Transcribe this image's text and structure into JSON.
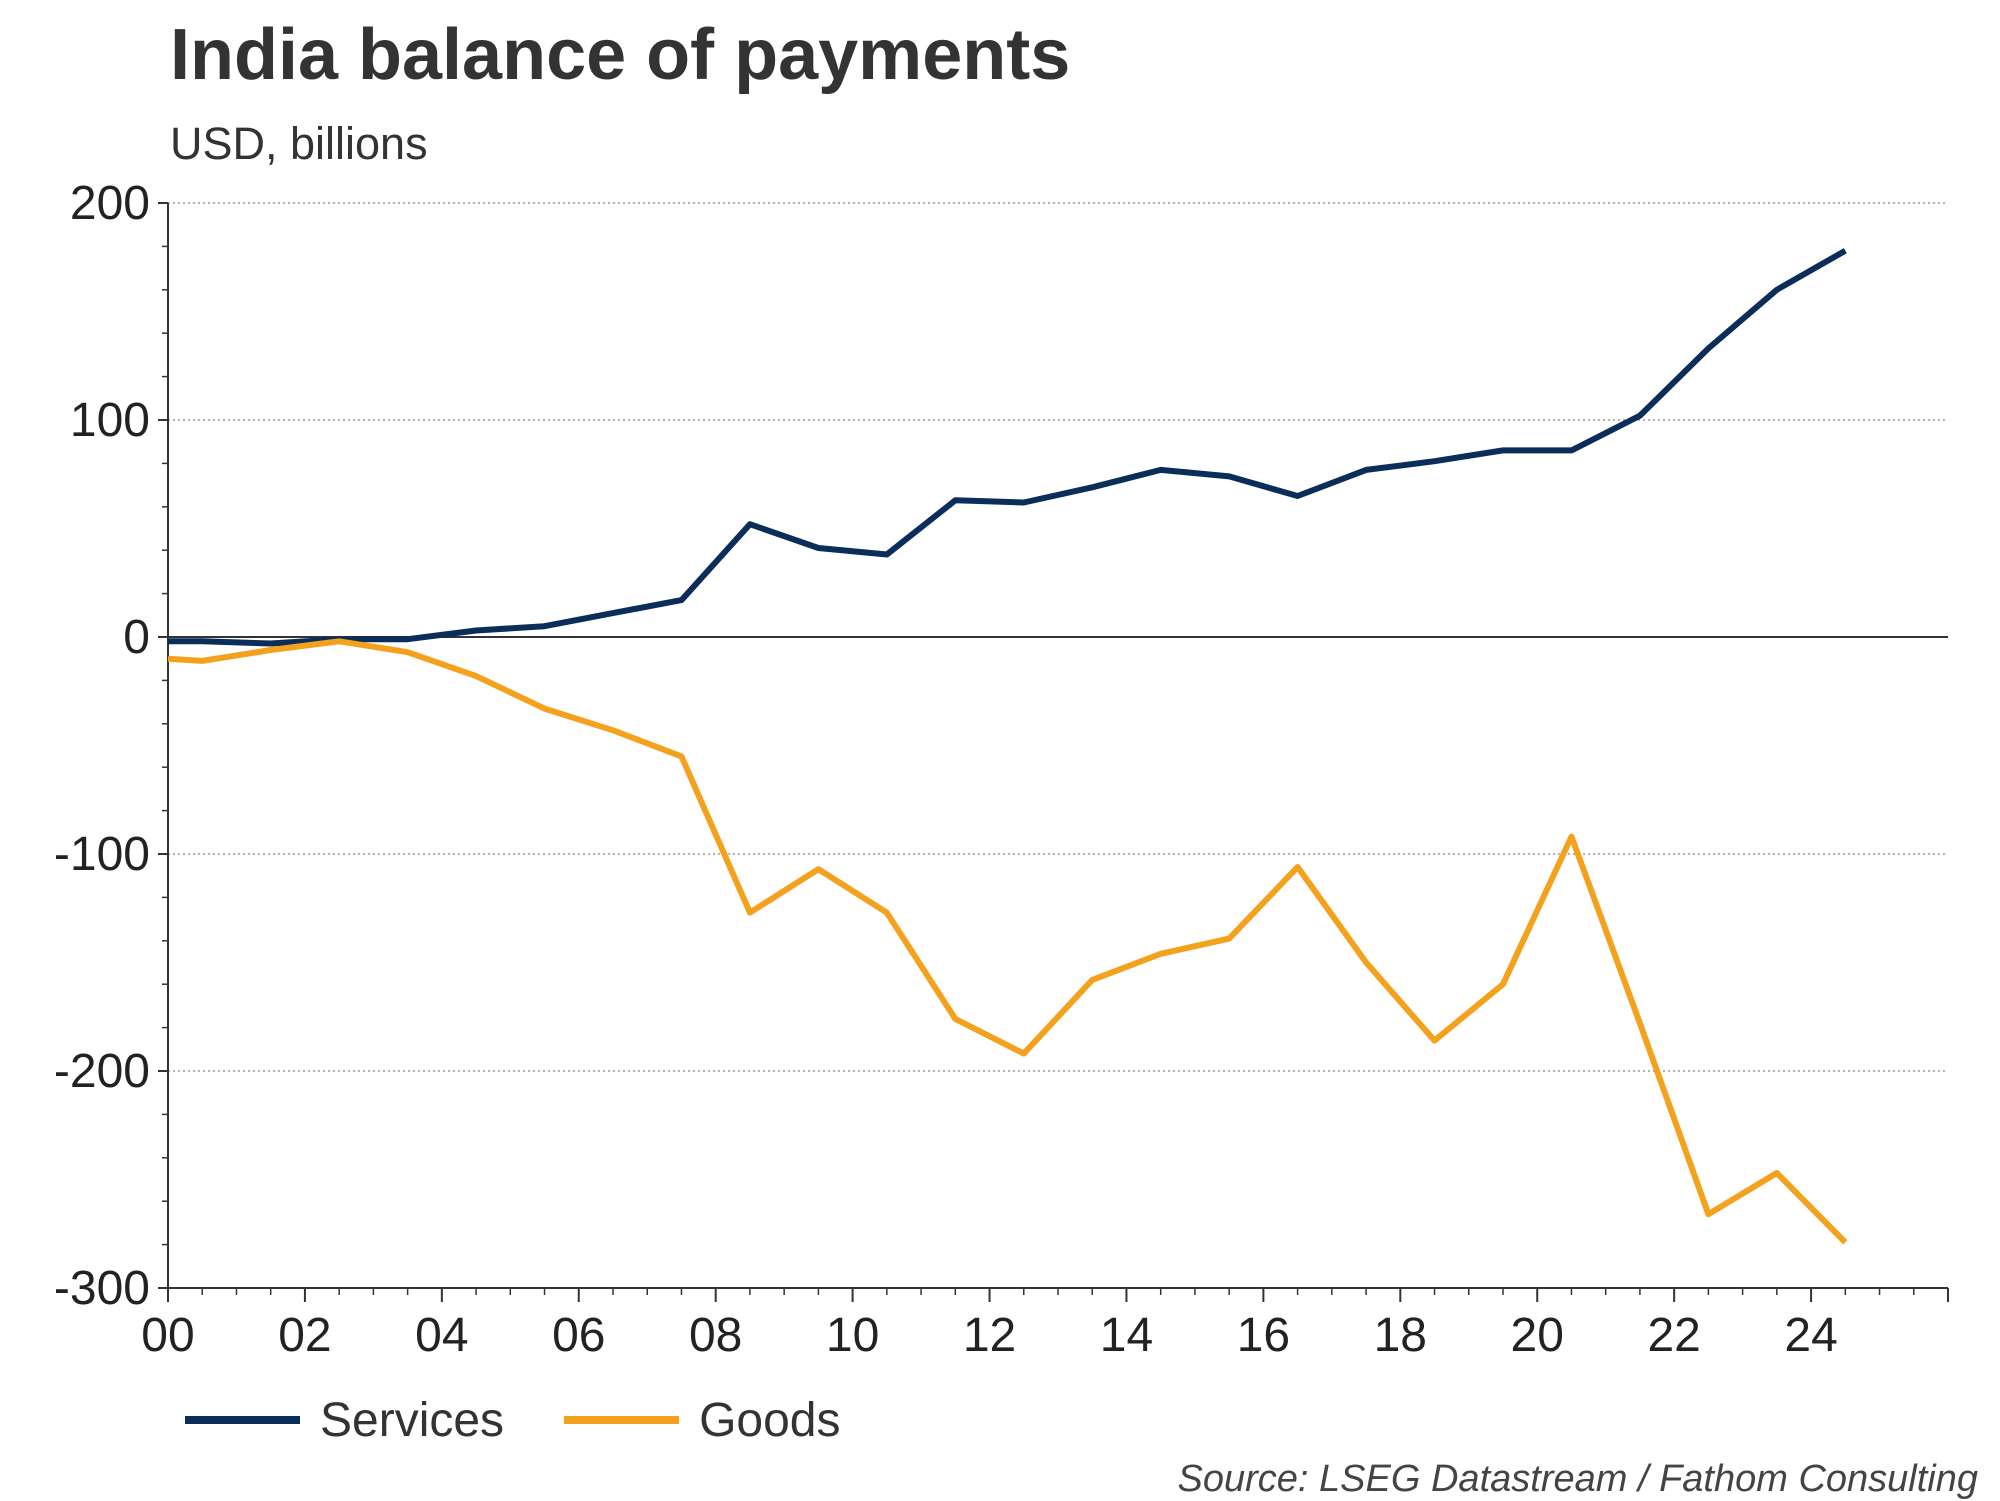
{
  "chart_data": {
    "type": "line",
    "title": "India balance of payments",
    "subtitle": "USD, billions",
    "xlabel": "",
    "ylabel": "",
    "ylim": [
      -300,
      200
    ],
    "yticks": [
      200,
      100,
      0,
      -100,
      -200,
      -300
    ],
    "xlim": [
      2000,
      2026
    ],
    "xticks": [
      {
        "value": 2000,
        "label": "00"
      },
      {
        "value": 2002,
        "label": "02"
      },
      {
        "value": 2004,
        "label": "04"
      },
      {
        "value": 2006,
        "label": "06"
      },
      {
        "value": 2008,
        "label": "08"
      },
      {
        "value": 2010,
        "label": "10"
      },
      {
        "value": 2012,
        "label": "12"
      },
      {
        "value": 2014,
        "label": "14"
      },
      {
        "value": 2016,
        "label": "16"
      },
      {
        "value": 2018,
        "label": "18"
      },
      {
        "value": 2020,
        "label": "20"
      },
      {
        "value": 2022,
        "label": "22"
      },
      {
        "value": 2024,
        "label": "24"
      }
    ],
    "grid": true,
    "legend_position": "bottom-left",
    "series": [
      {
        "name": "Services",
        "color": "#0b2d5a",
        "x": [
          2000,
          2000.5,
          2001.5,
          2002.5,
          2003.5,
          2004.5,
          2005.5,
          2006.5,
          2007.5,
          2008.5,
          2009.5,
          2010.5,
          2011.5,
          2012.5,
          2013.5,
          2014.5,
          2015.5,
          2016.5,
          2017.5,
          2018.5,
          2019.5,
          2020.5,
          2021.5,
          2022.5,
          2023.5,
          2024.5
        ],
        "values": [
          -2,
          -2,
          -3,
          -1,
          -1,
          3,
          5,
          11,
          17,
          52,
          41,
          38,
          63,
          62,
          69,
          77,
          74,
          65,
          77,
          81,
          86,
          86,
          102,
          133,
          160,
          178
        ]
      },
      {
        "name": "Goods",
        "color": "#f4a11d",
        "x": [
          2000,
          2000.5,
          2001.5,
          2002.5,
          2003.5,
          2004.5,
          2005.5,
          2006.5,
          2007.5,
          2008.5,
          2009.5,
          2010.5,
          2011.5,
          2012.5,
          2013.5,
          2014.5,
          2015.5,
          2016.5,
          2017.5,
          2018.5,
          2019.5,
          2020.5,
          2021.5,
          2022.5,
          2023.5,
          2024.5
        ],
        "values": [
          -10,
          -11,
          -6,
          -2,
          -7,
          -18,
          -33,
          -43,
          -55,
          -127,
          -107,
          -127,
          -176,
          -192,
          -158,
          -146,
          -139,
          -106,
          -150,
          -186,
          -160,
          -92,
          -178,
          -266,
          -247,
          -279
        ]
      }
    ],
    "source": "Source: LSEG Datastream / Fathom Consulting"
  }
}
